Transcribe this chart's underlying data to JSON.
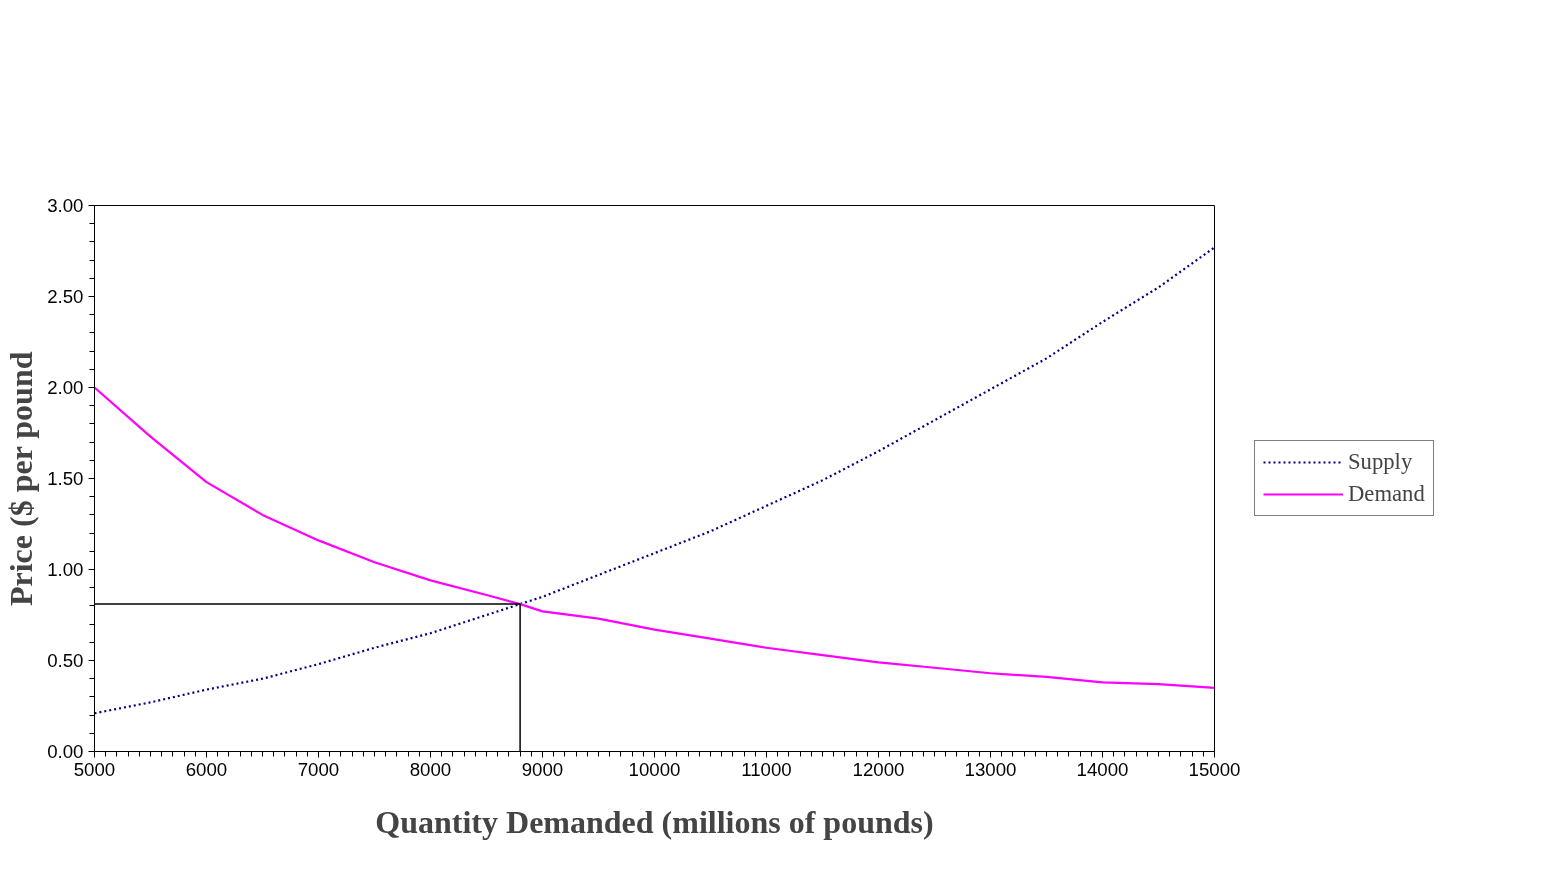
{
  "chart_data": {
    "type": "line",
    "xlabel": "Quantity Demanded (millions of pounds)",
    "ylabel": "Price ($ per pound",
    "xlim": [
      5000,
      15000
    ],
    "ylim": [
      0,
      3
    ],
    "xticks": [
      5000,
      6000,
      7000,
      8000,
      9000,
      10000,
      11000,
      12000,
      13000,
      14000,
      15000
    ],
    "yticks": [
      {
        "value": 0,
        "label": "0.00"
      },
      {
        "value": 0.5,
        "label": "0.50"
      },
      {
        "value": 1,
        "label": "1.00"
      },
      {
        "value": 1.5,
        "label": "1.50"
      },
      {
        "value": 2,
        "label": "2.00"
      },
      {
        "value": 2.5,
        "label": "2.50"
      },
      {
        "value": 3,
        "label": "3.00"
      }
    ],
    "x": [
      5000,
      5500,
      6000,
      6500,
      7000,
      7500,
      8000,
      8500,
      8800,
      9000,
      9500,
      10000,
      10500,
      11000,
      11500,
      12000,
      12500,
      13000,
      13500,
      14000,
      14500,
      15000
    ],
    "grid": false,
    "legend": "right",
    "marker": "none",
    "series": [
      {
        "name": "Supply",
        "color": "#000080",
        "line_style": "dotted",
        "values": [
          0.21,
          0.27,
          0.34,
          0.4,
          0.48,
          0.57,
          0.65,
          0.75,
          0.81,
          0.85,
          0.97,
          1.09,
          1.21,
          1.35,
          1.49,
          1.65,
          1.82,
          1.99,
          2.16,
          2.36,
          2.55,
          2.77
        ]
      },
      {
        "name": "Demand",
        "color": "#ff00ff",
        "line_style": "solid",
        "values": [
          2.0,
          1.73,
          1.48,
          1.3,
          1.16,
          1.04,
          0.94,
          0.86,
          0.81,
          0.77,
          0.73,
          0.67,
          0.62,
          0.57,
          0.53,
          0.49,
          0.46,
          0.43,
          0.41,
          0.38,
          0.37,
          0.35
        ]
      }
    ],
    "ref_lines": [
      {
        "axis": "y",
        "value": 0.81,
        "color": "#000000"
      },
      {
        "axis": "x",
        "value": 8800,
        "color": "#000000"
      }
    ]
  }
}
